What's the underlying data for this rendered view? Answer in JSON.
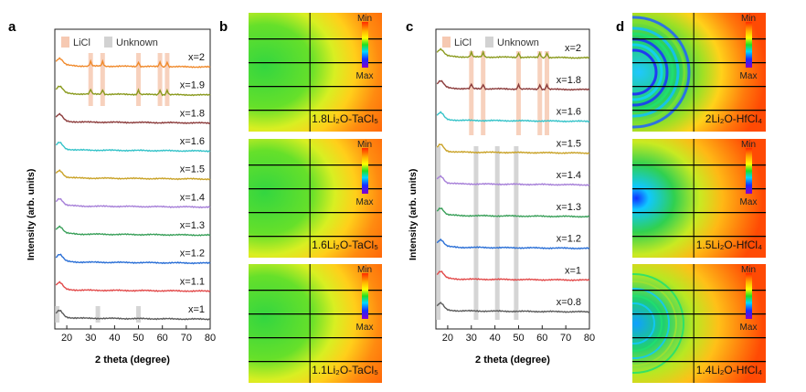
{
  "panels": {
    "a": {
      "letter": "a",
      "legend": {
        "licl": "LiCl",
        "unknown": "Unknown"
      },
      "ylabel": "Intensity (arb. units)",
      "xlabel": "2 theta (degree)",
      "ticks": [
        "20",
        "30",
        "40",
        "50",
        "60",
        "70",
        "80"
      ]
    },
    "b": {
      "letter": "b"
    },
    "c": {
      "letter": "c",
      "legend": {
        "licl": "LiCl",
        "unknown": "Unknown"
      },
      "ylabel": "Intensity (arb. units)",
      "xlabel": "2 theta (degree)",
      "ticks": [
        "20",
        "30",
        "40",
        "50",
        "60",
        "70",
        "80"
      ]
    },
    "d": {
      "letter": "d"
    }
  },
  "colorbar": {
    "min": "Min",
    "max": "Max"
  },
  "chart_data": [
    {
      "type": "line",
      "panel": "a",
      "title": "",
      "xlabel": "2 theta (degree)",
      "ylabel": "Intensity (arb. units)",
      "xlim": [
        15,
        80
      ],
      "x_ticks": [
        20,
        30,
        40,
        50,
        60,
        70,
        80
      ],
      "licl_peaks": [
        30,
        35,
        50,
        59,
        62
      ],
      "unknown_peaks": [
        16,
        33,
        50
      ],
      "series": [
        {
          "name": "x=2",
          "color": "#f08a2c"
        },
        {
          "name": "x=1.9",
          "color": "#8a9a1e"
        },
        {
          "name": "x=1.8",
          "color": "#8b3b3b"
        },
        {
          "name": "x=1.6",
          "color": "#35c3c9"
        },
        {
          "name": "x=1.5",
          "color": "#c9a227"
        },
        {
          "name": "x=1.4",
          "color": "#a67fd8"
        },
        {
          "name": "x=1.3",
          "color": "#3aa05a"
        },
        {
          "name": "x=1.2",
          "color": "#2a6fd6"
        },
        {
          "name": "x=1.1",
          "color": "#e24a4a"
        },
        {
          "name": "x=1",
          "color": "#5a5a5a"
        }
      ]
    },
    {
      "type": "line",
      "panel": "c",
      "title": "",
      "xlabel": "2 theta (degree)",
      "ylabel": "Intensity (arb. units)",
      "xlim": [
        15,
        80
      ],
      "x_ticks": [
        20,
        30,
        40,
        50,
        60,
        70,
        80
      ],
      "licl_peaks": [
        30,
        35,
        50,
        59,
        62
      ],
      "unknown_peaks": [
        16,
        32,
        41,
        49
      ],
      "series": [
        {
          "name": "x=2",
          "color": "#8a9a1e"
        },
        {
          "name": "x=1.8",
          "color": "#8b3b3b"
        },
        {
          "name": "x=1.6",
          "color": "#35c3c9"
        },
        {
          "name": "x=1.5",
          "color": "#c9a227"
        },
        {
          "name": "x=1.4",
          "color": "#a67fd8"
        },
        {
          "name": "x=1.3",
          "color": "#3aa05a"
        },
        {
          "name": "x=1.2",
          "color": "#2a6fd6"
        },
        {
          "name": "x=1",
          "color": "#e24a4a"
        },
        {
          "name": "x=0.8",
          "color": "#5a5a5a"
        }
      ]
    }
  ],
  "maps": {
    "b": [
      {
        "label": "1.8Li₂O-TaCl₅",
        "kind": "ta"
      },
      {
        "label": "1.6Li₂O-TaCl₅",
        "kind": "ta"
      },
      {
        "label": "1.1Li₂O-TaCl₅",
        "kind": "ta"
      }
    ],
    "d": [
      {
        "label": "2Li₂O-HfCl₄",
        "kind": "hf1"
      },
      {
        "label": "1.5Li₂O-HfCl₄",
        "kind": "hf2"
      },
      {
        "label": "1.4Li₂O-HfCl₄",
        "kind": "hf3"
      }
    ]
  }
}
